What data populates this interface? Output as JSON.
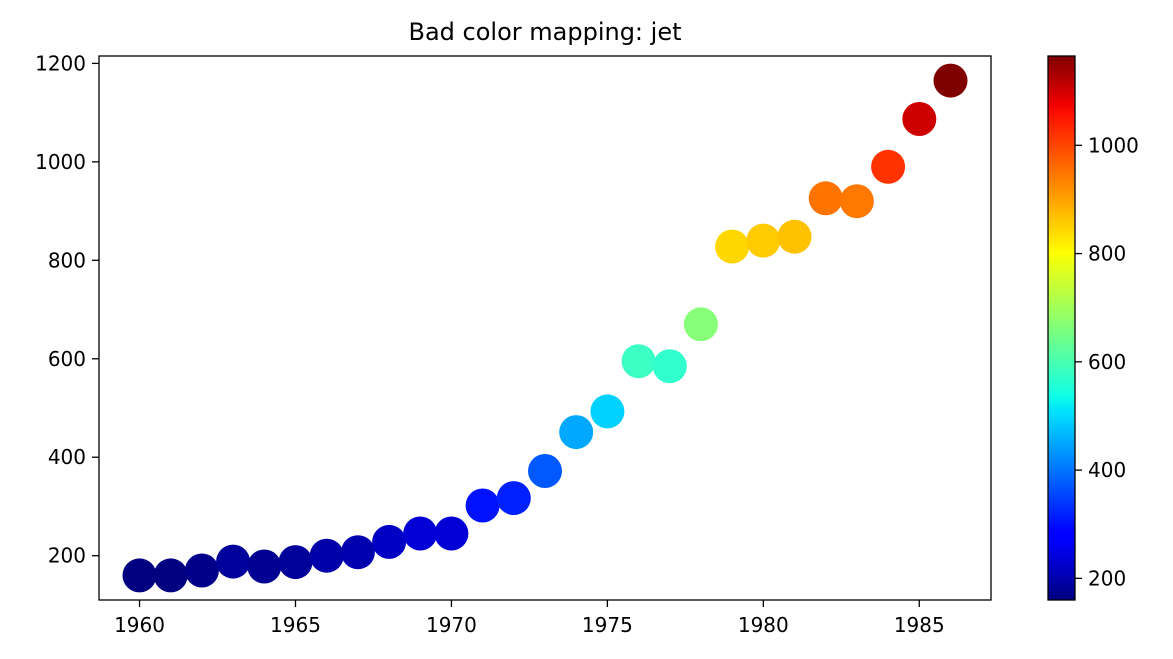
{
  "chart_data": {
    "type": "scatter",
    "title": "Bad color mapping: jet",
    "xlabel": "",
    "ylabel": "",
    "xlim": [
      1958.7,
      1987.3
    ],
    "ylim": [
      110,
      1215
    ],
    "x_ticks": [
      1960,
      1965,
      1970,
      1975,
      1980,
      1985
    ],
    "y_ticks": [
      200,
      400,
      600,
      800,
      1000,
      1200
    ],
    "colorbar": {
      "colormap": "jet",
      "range": [
        160,
        1165
      ],
      "ticks": [
        200,
        400,
        600,
        800,
        1000
      ]
    },
    "grid": false,
    "legend": "none",
    "x": [
      1960,
      1961,
      1962,
      1963,
      1964,
      1965,
      1966,
      1967,
      1968,
      1969,
      1970,
      1971,
      1972,
      1973,
      1974,
      1975,
      1976,
      1977,
      1978,
      1979,
      1980,
      1981,
      1982,
      1983,
      1984,
      1985,
      1986
    ],
    "y": [
      160,
      160,
      170,
      188,
      178,
      187,
      200,
      207,
      228,
      245,
      245,
      302,
      317,
      372,
      451,
      493,
      595,
      585,
      670,
      828,
      840,
      848,
      926,
      920,
      990,
      1087,
      1165
    ]
  }
}
